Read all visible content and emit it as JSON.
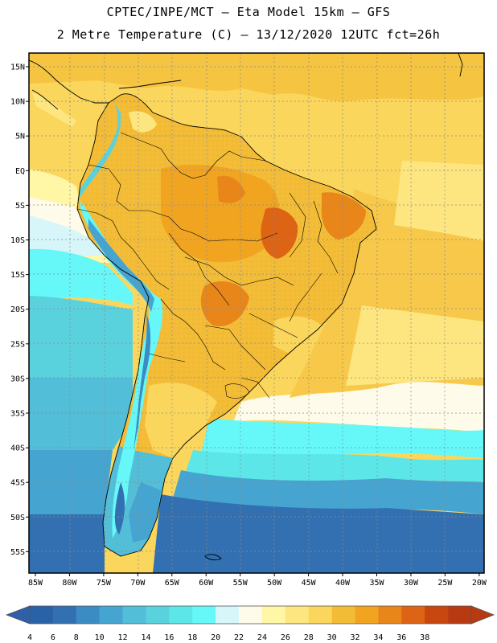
{
  "header": {
    "line1": "CPTEC/INPE/MCT –  Eta Model 15km – GFS",
    "line2": "2 Metre Temperature (C) – 13/12/2020 12UTC fct=26h"
  },
  "map": {
    "lat_labels": [
      "15N",
      "10N",
      "5N",
      "EQ",
      "5S",
      "10S",
      "15S",
      "20S",
      "25S",
      "30S",
      "35S",
      "40S",
      "45S",
      "50S",
      "55S"
    ],
    "lon_labels": [
      "85W",
      "80W",
      "75W",
      "70W",
      "65W",
      "60W",
      "55W",
      "50W",
      "45W",
      "40W",
      "35W",
      "30W",
      "25W",
      "20W"
    ]
  },
  "colorbar": {
    "ticks": [
      "4",
      "6",
      "8",
      "10",
      "12",
      "14",
      "16",
      "18",
      "20",
      "22",
      "24",
      "26",
      "28",
      "30",
      "32",
      "34",
      "36",
      "38"
    ],
    "colors": [
      "#2a62a8",
      "#3270b2",
      "#3c8cc4",
      "#46a4d0",
      "#52bed8",
      "#5ad2de",
      "#5ce6e8",
      "#66f8f8",
      "#d6f6fa",
      "#fffbea",
      "#fff6a6",
      "#fde680",
      "#fbd65c",
      "#f3bc36",
      "#f0a420",
      "#e8861a",
      "#dc6414",
      "#c84610",
      "#b83a12"
    ],
    "left_arrow": "#2e5fa8",
    "right_arrow": "#b83a12"
  }
}
